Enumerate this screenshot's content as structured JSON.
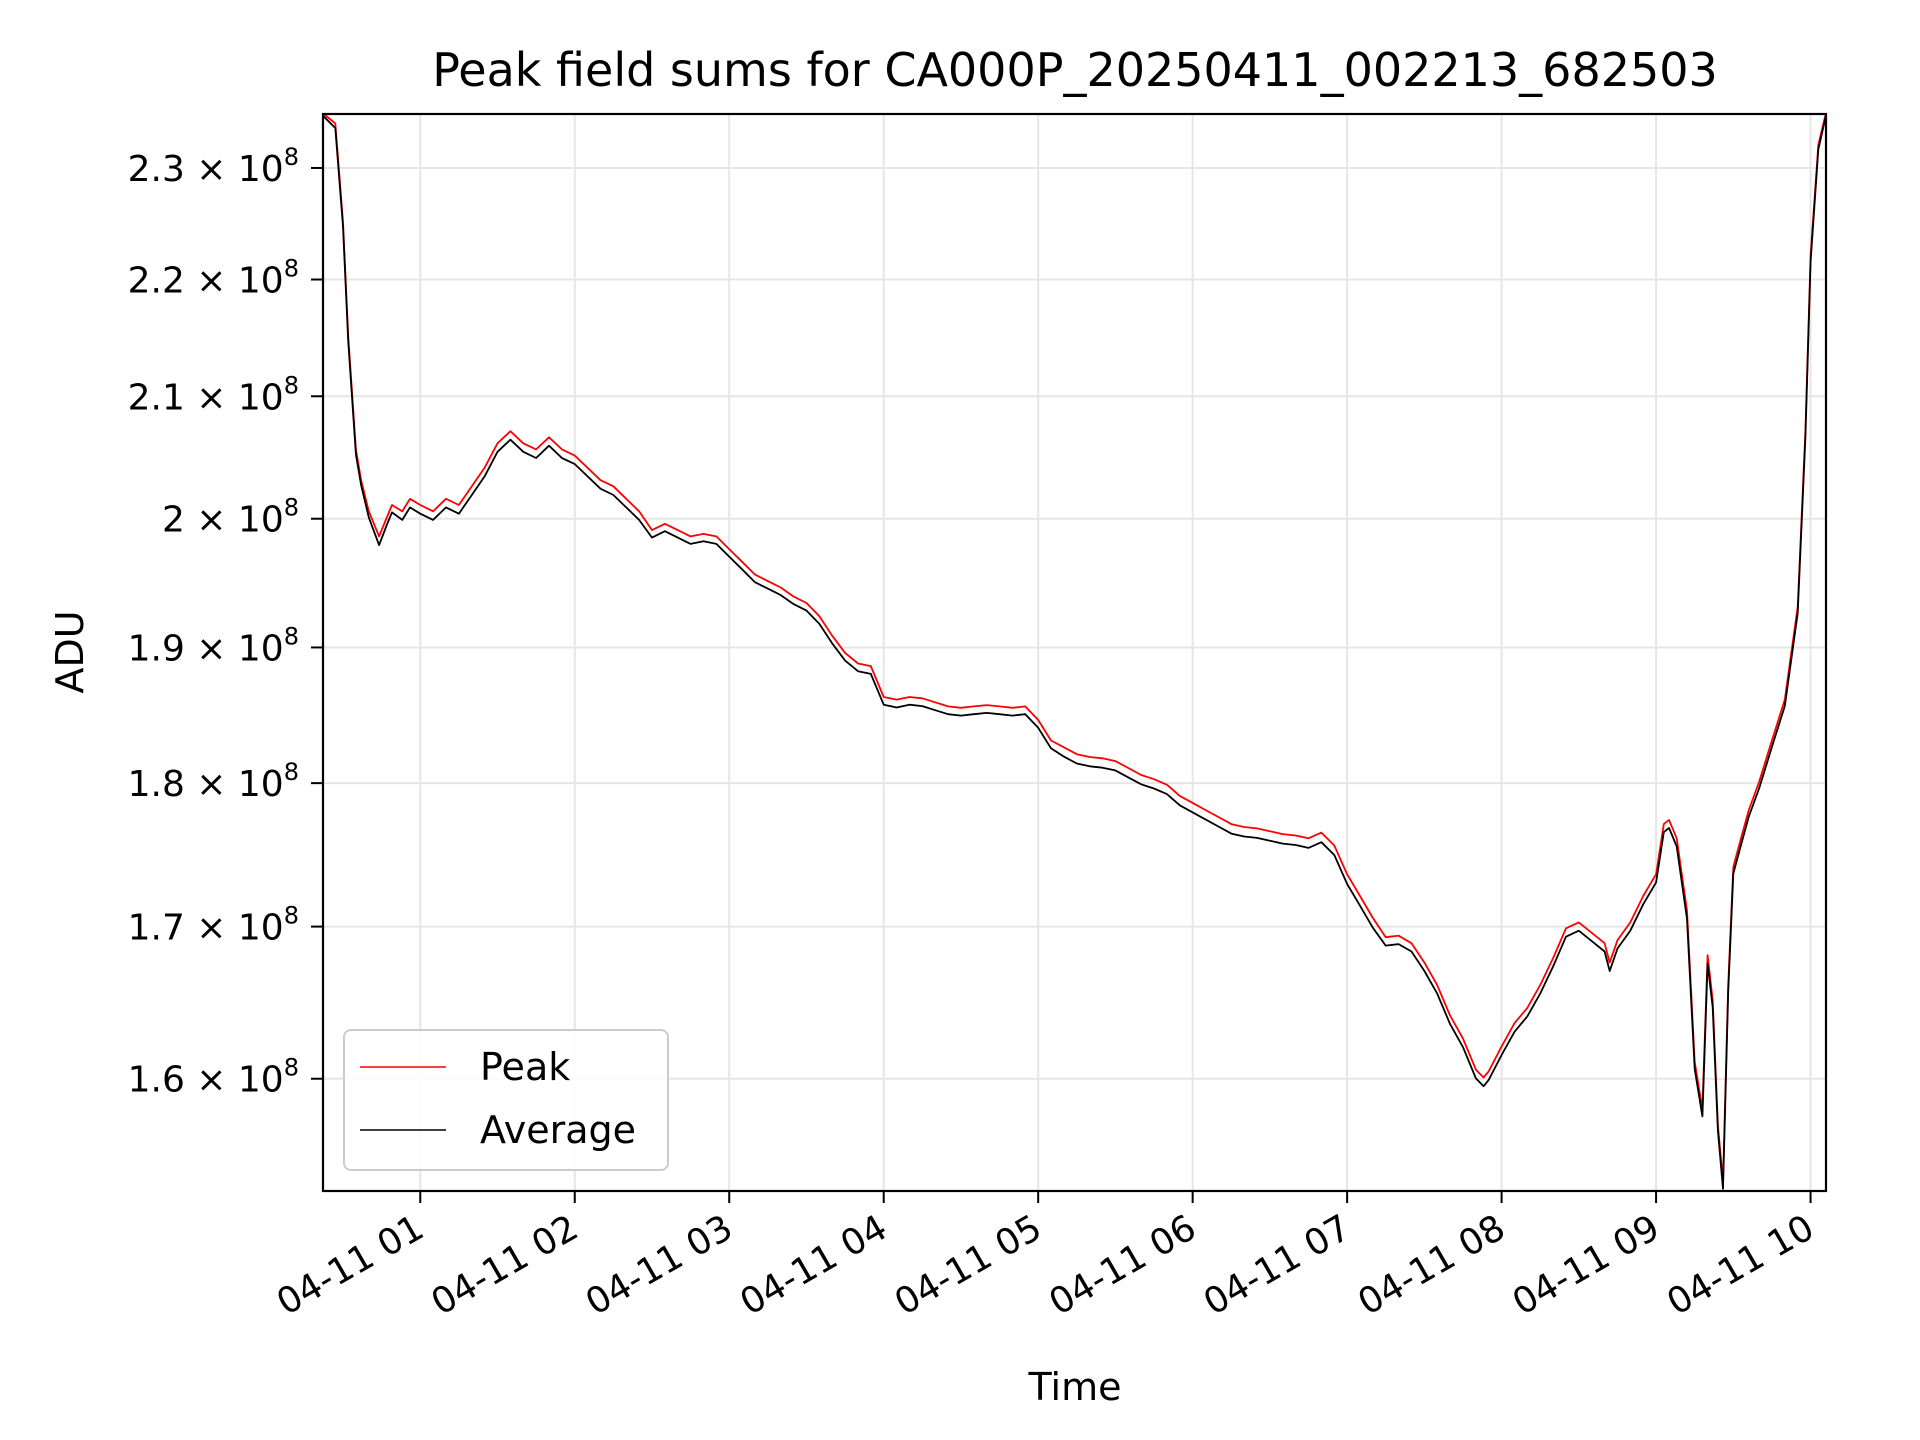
{
  "chart_data": {
    "type": "line",
    "title": "Peak field sums for CA000P_20250411_002213_682503",
    "xlabel": "Time",
    "ylabel": "ADU",
    "y_scale": "log",
    "ylim": [
      153000000,
      235000000
    ],
    "xlim": [
      "2025-04-11T00:22:13",
      "2025-04-11T10:06:00"
    ],
    "grid": true,
    "legend_position": "lower-left",
    "x_ticks": [
      {
        "value": "2025-04-11T01:00",
        "label": "04-11 01"
      },
      {
        "value": "2025-04-11T02:00",
        "label": "04-11 02"
      },
      {
        "value": "2025-04-11T03:00",
        "label": "04-11 03"
      },
      {
        "value": "2025-04-11T04:00",
        "label": "04-11 04"
      },
      {
        "value": "2025-04-11T05:00",
        "label": "04-11 05"
      },
      {
        "value": "2025-04-11T06:00",
        "label": "04-11 06"
      },
      {
        "value": "2025-04-11T07:00",
        "label": "04-11 07"
      },
      {
        "value": "2025-04-11T08:00",
        "label": "04-11 08"
      },
      {
        "value": "2025-04-11T09:00",
        "label": "04-11 09"
      },
      {
        "value": "2025-04-11T10:00",
        "label": "04-11 10"
      }
    ],
    "y_ticks": [
      {
        "value": 160000000,
        "mant": "1.6",
        "exp": "8"
      },
      {
        "value": 170000000,
        "mant": "1.7",
        "exp": "8"
      },
      {
        "value": 180000000,
        "mant": "1.8",
        "exp": "8"
      },
      {
        "value": 190000000,
        "mant": "1.9",
        "exp": "8"
      },
      {
        "value": 200000000,
        "mant": "2",
        "exp": "8"
      },
      {
        "value": 210000000,
        "mant": "2.1",
        "exp": "8"
      },
      {
        "value": 220000000,
        "mant": "2.2",
        "exp": "8"
      },
      {
        "value": 230000000,
        "mant": "2.3",
        "exp": "8"
      }
    ],
    "series": [
      {
        "name": "Peak",
        "color": "#ff0000",
        "x": [
          "2025-04-11T00:22",
          "2025-04-11T00:27",
          "2025-04-11T00:30",
          "2025-04-11T00:32",
          "2025-04-11T00:35",
          "2025-04-11T00:37",
          "2025-04-11T00:40",
          "2025-04-11T00:44",
          "2025-04-11T00:47",
          "2025-04-11T00:49",
          "2025-04-11T00:53",
          "2025-04-11T00:56",
          "2025-04-11T01:00",
          "2025-04-11T01:05",
          "2025-04-11T01:10",
          "2025-04-11T01:15",
          "2025-04-11T01:20",
          "2025-04-11T01:25",
          "2025-04-11T01:30",
          "2025-04-11T01:35",
          "2025-04-11T01:40",
          "2025-04-11T01:45",
          "2025-04-11T01:50",
          "2025-04-11T01:55",
          "2025-04-11T02:00",
          "2025-04-11T02:05",
          "2025-04-11T02:10",
          "2025-04-11T02:15",
          "2025-04-11T02:20",
          "2025-04-11T02:25",
          "2025-04-11T02:30",
          "2025-04-11T02:35",
          "2025-04-11T02:40",
          "2025-04-11T02:45",
          "2025-04-11T02:50",
          "2025-04-11T02:55",
          "2025-04-11T03:00",
          "2025-04-11T03:05",
          "2025-04-11T03:10",
          "2025-04-11T03:15",
          "2025-04-11T03:20",
          "2025-04-11T03:25",
          "2025-04-11T03:30",
          "2025-04-11T03:35",
          "2025-04-11T03:40",
          "2025-04-11T03:45",
          "2025-04-11T03:50",
          "2025-04-11T03:55",
          "2025-04-11T04:00",
          "2025-04-11T04:05",
          "2025-04-11T04:10",
          "2025-04-11T04:15",
          "2025-04-11T04:20",
          "2025-04-11T04:25",
          "2025-04-11T04:30",
          "2025-04-11T04:35",
          "2025-04-11T04:40",
          "2025-04-11T04:45",
          "2025-04-11T04:50",
          "2025-04-11T04:55",
          "2025-04-11T05:00",
          "2025-04-11T05:05",
          "2025-04-11T05:10",
          "2025-04-11T05:15",
          "2025-04-11T05:20",
          "2025-04-11T05:25",
          "2025-04-11T05:30",
          "2025-04-11T05:35",
          "2025-04-11T05:40",
          "2025-04-11T05:45",
          "2025-04-11T05:50",
          "2025-04-11T05:55",
          "2025-04-11T06:00",
          "2025-04-11T06:05",
          "2025-04-11T06:10",
          "2025-04-11T06:15",
          "2025-04-11T06:20",
          "2025-04-11T06:25",
          "2025-04-11T06:30",
          "2025-04-11T06:35",
          "2025-04-11T06:40",
          "2025-04-11T06:45",
          "2025-04-11T06:50",
          "2025-04-11T06:55",
          "2025-04-11T07:00",
          "2025-04-11T07:05",
          "2025-04-11T07:10",
          "2025-04-11T07:15",
          "2025-04-11T07:20",
          "2025-04-11T07:25",
          "2025-04-11T07:30",
          "2025-04-11T07:35",
          "2025-04-11T07:40",
          "2025-04-11T07:45",
          "2025-04-11T07:50",
          "2025-04-11T07:53",
          "2025-04-11T07:55",
          "2025-04-11T08:00",
          "2025-04-11T08:05",
          "2025-04-11T08:10",
          "2025-04-11T08:15",
          "2025-04-11T08:20",
          "2025-04-11T08:25",
          "2025-04-11T08:30",
          "2025-04-11T08:35",
          "2025-04-11T08:40",
          "2025-04-11T08:42",
          "2025-04-11T08:45",
          "2025-04-11T08:50",
          "2025-04-11T08:55",
          "2025-04-11T09:00",
          "2025-04-11T09:03",
          "2025-04-11T09:05",
          "2025-04-11T09:08",
          "2025-04-11T09:12",
          "2025-04-11T09:15",
          "2025-04-11T09:18",
          "2025-04-11T09:20",
          "2025-04-11T09:22",
          "2025-04-11T09:24",
          "2025-04-11T09:26",
          "2025-04-11T09:28",
          "2025-04-11T09:30",
          "2025-04-11T09:33",
          "2025-04-11T09:36",
          "2025-04-11T09:40",
          "2025-04-11T09:45",
          "2025-04-11T09:50",
          "2025-04-11T09:55",
          "2025-04-11T09:58",
          "2025-04-11T10:00",
          "2025-04-11T10:03",
          "2025-04-11T10:06"
        ],
        "values": [
          235000000,
          234000000,
          225000000,
          215000000,
          205500000,
          203000000,
          200500000,
          198500000,
          200000000,
          201000000,
          200500000,
          201500000,
          201000000,
          200500000,
          201500000,
          201000000,
          202500000,
          204000000,
          206000000,
          207000000,
          206000000,
          205500000,
          206500000,
          205500000,
          205000000,
          204000000,
          203000000,
          202500000,
          201500000,
          200500000,
          199000000,
          199500000,
          199000000,
          198500000,
          198700000,
          198500000,
          197500000,
          196500000,
          195500000,
          195000000,
          194500000,
          193800000,
          193300000,
          192300000,
          190800000,
          189500000,
          188700000,
          188500000,
          186200000,
          186000000,
          186200000,
          186100000,
          185800000,
          185500000,
          185400000,
          185500000,
          185600000,
          185500000,
          185400000,
          185500000,
          184500000,
          183000000,
          182500000,
          182000000,
          181800000,
          181700000,
          181500000,
          181000000,
          180500000,
          180200000,
          179800000,
          179000000,
          178500000,
          178000000,
          177500000,
          177000000,
          176800000,
          176700000,
          176500000,
          176300000,
          176200000,
          176000000,
          176400000,
          175500000,
          173500000,
          172000000,
          170500000,
          169200000,
          169300000,
          168800000,
          167500000,
          166000000,
          164000000,
          162500000,
          160500000,
          160000000,
          160400000,
          162000000,
          163500000,
          164500000,
          166000000,
          167800000,
          169800000,
          170200000,
          169500000,
          168800000,
          167500000,
          169000000,
          170200000,
          172000000,
          173500000,
          177000000,
          177300000,
          176000000,
          171000000,
          161000000,
          158000000,
          168000000,
          165000000,
          157000000,
          153500000,
          166000000,
          174000000,
          176000000,
          178000000,
          180000000,
          183000000,
          186000000,
          193000000,
          207000000,
          222000000,
          232000000,
          235000000
        ]
      },
      {
        "name": "Average",
        "color": "#000000",
        "x": [
          "2025-04-11T00:22",
          "2025-04-11T00:27",
          "2025-04-11T00:30",
          "2025-04-11T00:32",
          "2025-04-11T00:35",
          "2025-04-11T00:37",
          "2025-04-11T00:40",
          "2025-04-11T00:44",
          "2025-04-11T00:47",
          "2025-04-11T00:49",
          "2025-04-11T00:53",
          "2025-04-11T00:56",
          "2025-04-11T01:00",
          "2025-04-11T01:05",
          "2025-04-11T01:10",
          "2025-04-11T01:15",
          "2025-04-11T01:20",
          "2025-04-11T01:25",
          "2025-04-11T01:30",
          "2025-04-11T01:35",
          "2025-04-11T01:40",
          "2025-04-11T01:45",
          "2025-04-11T01:50",
          "2025-04-11T01:55",
          "2025-04-11T02:00",
          "2025-04-11T02:05",
          "2025-04-11T02:10",
          "2025-04-11T02:15",
          "2025-04-11T02:20",
          "2025-04-11T02:25",
          "2025-04-11T02:30",
          "2025-04-11T02:35",
          "2025-04-11T02:40",
          "2025-04-11T02:45",
          "2025-04-11T02:50",
          "2025-04-11T02:55",
          "2025-04-11T03:00",
          "2025-04-11T03:05",
          "2025-04-11T03:10",
          "2025-04-11T03:15",
          "2025-04-11T03:20",
          "2025-04-11T03:25",
          "2025-04-11T03:30",
          "2025-04-11T03:35",
          "2025-04-11T03:40",
          "2025-04-11T03:45",
          "2025-04-11T03:50",
          "2025-04-11T03:55",
          "2025-04-11T04:00",
          "2025-04-11T04:05",
          "2025-04-11T04:10",
          "2025-04-11T04:15",
          "2025-04-11T04:20",
          "2025-04-11T04:25",
          "2025-04-11T04:30",
          "2025-04-11T04:35",
          "2025-04-11T04:40",
          "2025-04-11T04:45",
          "2025-04-11T04:50",
          "2025-04-11T04:55",
          "2025-04-11T05:00",
          "2025-04-11T05:05",
          "2025-04-11T05:10",
          "2025-04-11T05:15",
          "2025-04-11T05:20",
          "2025-04-11T05:25",
          "2025-04-11T05:30",
          "2025-04-11T05:35",
          "2025-04-11T05:40",
          "2025-04-11T05:45",
          "2025-04-11T05:50",
          "2025-04-11T05:55",
          "2025-04-11T06:00",
          "2025-04-11T06:05",
          "2025-04-11T06:10",
          "2025-04-11T06:15",
          "2025-04-11T06:20",
          "2025-04-11T06:25",
          "2025-04-11T06:30",
          "2025-04-11T06:35",
          "2025-04-11T06:40",
          "2025-04-11T06:45",
          "2025-04-11T06:50",
          "2025-04-11T06:55",
          "2025-04-11T07:00",
          "2025-04-11T07:05",
          "2025-04-11T07:10",
          "2025-04-11T07:15",
          "2025-04-11T07:20",
          "2025-04-11T07:25",
          "2025-04-11T07:30",
          "2025-04-11T07:35",
          "2025-04-11T07:40",
          "2025-04-11T07:45",
          "2025-04-11T07:50",
          "2025-04-11T07:53",
          "2025-04-11T07:55",
          "2025-04-11T08:00",
          "2025-04-11T08:05",
          "2025-04-11T08:10",
          "2025-04-11T08:15",
          "2025-04-11T08:20",
          "2025-04-11T08:25",
          "2025-04-11T08:30",
          "2025-04-11T08:35",
          "2025-04-11T08:40",
          "2025-04-11T08:42",
          "2025-04-11T08:45",
          "2025-04-11T08:50",
          "2025-04-11T08:55",
          "2025-04-11T09:00",
          "2025-04-11T09:03",
          "2025-04-11T09:05",
          "2025-04-11T09:08",
          "2025-04-11T09:12",
          "2025-04-11T09:15",
          "2025-04-11T09:18",
          "2025-04-11T09:20",
          "2025-04-11T09:22",
          "2025-04-11T09:24",
          "2025-04-11T09:26",
          "2025-04-11T09:28",
          "2025-04-11T09:30",
          "2025-04-11T09:33",
          "2025-04-11T09:36",
          "2025-04-11T09:40",
          "2025-04-11T09:45",
          "2025-04-11T09:50",
          "2025-04-11T09:55",
          "2025-04-11T09:58",
          "2025-04-11T10:00",
          "2025-04-11T10:03",
          "2025-04-11T10:06"
        ],
        "values": [
          235000000,
          233800000,
          224800000,
          214800000,
          205300000,
          202800000,
          200200000,
          198000000,
          199600000,
          200600000,
          200000000,
          201000000,
          200500000,
          200000000,
          201000000,
          200500000,
          202000000,
          203500000,
          205500000,
          206500000,
          205500000,
          205000000,
          206000000,
          205000000,
          204500000,
          203500000,
          202500000,
          202000000,
          201000000,
          200000000,
          198600000,
          199100000,
          198600000,
          198100000,
          198300000,
          198100000,
          197100000,
          196100000,
          195100000,
          194600000,
          194100000,
          193400000,
          192900000,
          191900000,
          190400000,
          189100000,
          188300000,
          188100000,
          185800000,
          185600000,
          185800000,
          185700000,
          185400000,
          185100000,
          185000000,
          185100000,
          185200000,
          185100000,
          185000000,
          185100000,
          184100000,
          182600000,
          182000000,
          181500000,
          181300000,
          181200000,
          181000000,
          180500000,
          180000000,
          179700000,
          179300000,
          178500000,
          178000000,
          177500000,
          177000000,
          176500000,
          176300000,
          176200000,
          176000000,
          175800000,
          175700000,
          175500000,
          175900000,
          175000000,
          173000000,
          171500000,
          170000000,
          168800000,
          168900000,
          168400000,
          167100000,
          165600000,
          163600000,
          162100000,
          160100000,
          159600000,
          160000000,
          161600000,
          163100000,
          164100000,
          165600000,
          167400000,
          169400000,
          169800000,
          169100000,
          168400000,
          167100000,
          168600000,
          169800000,
          171600000,
          173100000,
          176600000,
          176900000,
          175600000,
          170600000,
          160700000,
          157700000,
          167600000,
          164700000,
          156800000,
          153200000,
          165700000,
          173700000,
          175700000,
          177700000,
          179700000,
          182700000,
          185700000,
          192700000,
          206700000,
          221700000,
          231800000,
          235000000
        ]
      }
    ]
  }
}
